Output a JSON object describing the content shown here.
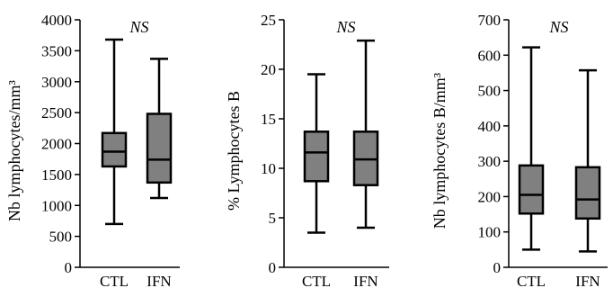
{
  "chart_data": [
    {
      "type": "box",
      "ylabel": "Nb lymphocytes/mm³",
      "ylim": [
        0,
        4000
      ],
      "yticks": [
        0,
        500,
        1000,
        1500,
        2000,
        2500,
        3000,
        3500,
        4000
      ],
      "annotation": "NS",
      "colors": {
        "box": "#808080",
        "line": "#000000"
      },
      "groups": [
        {
          "category": "CTL",
          "min": 700,
          "q1": 1630,
          "median": 1870,
          "q3": 2170,
          "max": 3680
        },
        {
          "category": "IFN",
          "min": 1120,
          "q1": 1370,
          "median": 1740,
          "q3": 2480,
          "max": 3370
        }
      ]
    },
    {
      "type": "box",
      "ylabel": "% Lymphocytes B",
      "ylim": [
        0,
        25
      ],
      "yticks": [
        0,
        5,
        10,
        15,
        20,
        25
      ],
      "annotation": "NS",
      "colors": {
        "box": "#808080",
        "line": "#000000"
      },
      "groups": [
        {
          "category": "CTL",
          "min": 3.5,
          "q1": 8.7,
          "median": 11.6,
          "q3": 13.7,
          "max": 19.5
        },
        {
          "category": "IFN",
          "min": 4.0,
          "q1": 8.3,
          "median": 10.9,
          "q3": 13.7,
          "max": 22.9
        }
      ]
    },
    {
      "type": "box",
      "ylabel": "Nb lymphocytes B/mm³",
      "ylim": [
        0,
        700
      ],
      "yticks": [
        0,
        100,
        200,
        300,
        400,
        500,
        600,
        700
      ],
      "annotation": "NS",
      "colors": {
        "box": "#808080",
        "line": "#000000"
      },
      "groups": [
        {
          "category": "CTL",
          "min": 50,
          "q1": 152,
          "median": 205,
          "q3": 288,
          "max": 622
        },
        {
          "category": "IFN",
          "min": 45,
          "q1": 138,
          "median": 192,
          "q3": 283,
          "max": 557
        }
      ]
    }
  ]
}
